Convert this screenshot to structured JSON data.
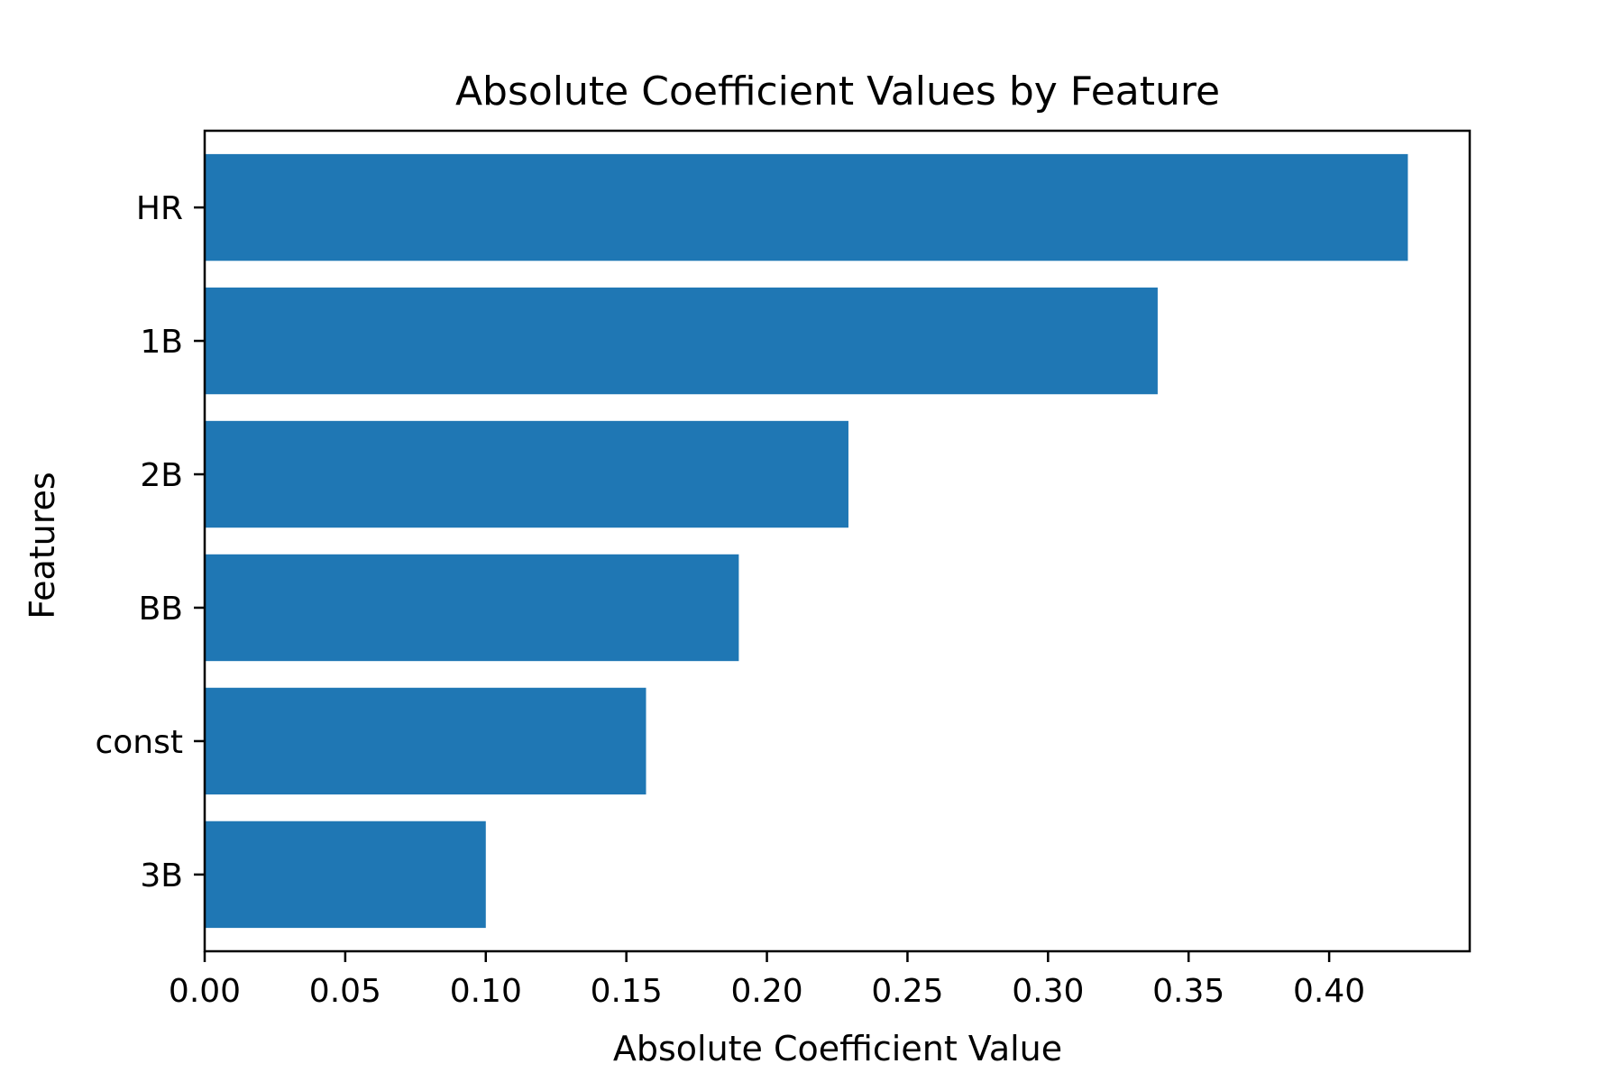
{
  "chart_data": {
    "type": "bar",
    "orientation": "horizontal",
    "title": "Absolute Coefficient Values by Feature",
    "xlabel": "Absolute Coefficient Value",
    "ylabel": "Features",
    "categories": [
      "HR",
      "1B",
      "2B",
      "BB",
      "const",
      "3B"
    ],
    "values": [
      0.428,
      0.339,
      0.229,
      0.19,
      0.157,
      0.1
    ],
    "xlim": [
      0,
      0.45
    ],
    "xticks": [
      "0.00",
      "0.05",
      "0.10",
      "0.15",
      "0.20",
      "0.25",
      "0.30",
      "0.35",
      "0.40"
    ],
    "bar_color": "#1f77b4",
    "grid": false,
    "legend": "none"
  }
}
